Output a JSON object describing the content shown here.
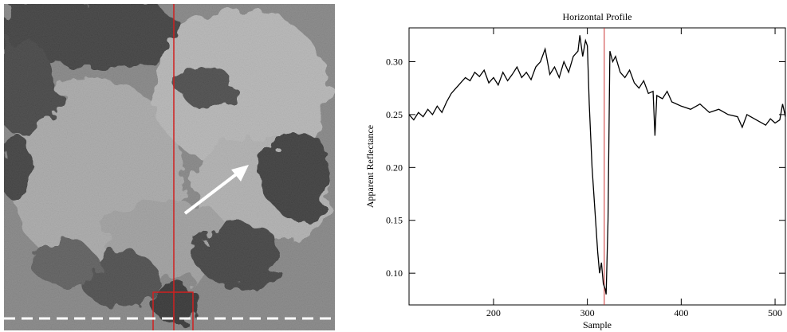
{
  "chart_data": {
    "type": "line",
    "title": "Horizontal Profile",
    "x_label": "Sample",
    "y_label": "Apparent Reflectance",
    "x": [
      110,
      115,
      120,
      125,
      130,
      135,
      140,
      145,
      150,
      155,
      160,
      165,
      170,
      175,
      180,
      185,
      190,
      195,
      200,
      205,
      210,
      215,
      220,
      225,
      230,
      235,
      240,
      245,
      250,
      255,
      260,
      265,
      270,
      275,
      280,
      285,
      290,
      292,
      295,
      298,
      300,
      302,
      305,
      308,
      311,
      313,
      315,
      317,
      319,
      320,
      322,
      324,
      327,
      330,
      335,
      340,
      345,
      350,
      355,
      360,
      365,
      370,
      372,
      374,
      380,
      385,
      390,
      395,
      400,
      410,
      420,
      430,
      440,
      450,
      460,
      465,
      470,
      480,
      490,
      495,
      500,
      505,
      508,
      511
    ],
    "values": [
      0.25,
      0.245,
      0.252,
      0.248,
      0.255,
      0.25,
      0.258,
      0.252,
      0.262,
      0.27,
      0.275,
      0.28,
      0.285,
      0.282,
      0.29,
      0.286,
      0.292,
      0.28,
      0.285,
      0.278,
      0.29,
      0.282,
      0.288,
      0.295,
      0.285,
      0.29,
      0.283,
      0.295,
      0.3,
      0.312,
      0.288,
      0.295,
      0.285,
      0.3,
      0.29,
      0.305,
      0.31,
      0.325,
      0.305,
      0.32,
      0.315,
      0.26,
      0.2,
      0.16,
      0.12,
      0.1,
      0.11,
      0.09,
      0.085,
      0.08,
      0.15,
      0.31,
      0.3,
      0.305,
      0.29,
      0.285,
      0.292,
      0.28,
      0.275,
      0.282,
      0.27,
      0.272,
      0.23,
      0.268,
      0.265,
      0.272,
      0.262,
      0.26,
      0.258,
      0.255,
      0.26,
      0.252,
      0.255,
      0.25,
      0.248,
      0.238,
      0.25,
      0.245,
      0.24,
      0.246,
      0.242,
      0.245,
      0.26,
      0.248
    ],
    "color": "#000000",
    "marker": {
      "x": 318,
      "color": "#cc3333"
    },
    "xlim": [
      110,
      511
    ],
    "ylim": [
      0.07,
      0.332
    ],
    "xticks": [
      200,
      300,
      400,
      500
    ],
    "yticks": [
      {
        "value": 0.1,
        "label": "0.10"
      },
      {
        "value": 0.15,
        "label": "0.15"
      },
      {
        "value": 0.2,
        "label": "0.20"
      },
      {
        "value": 0.25,
        "label": "0.25"
      },
      {
        "value": 0.3,
        "label": "0.30"
      }
    ],
    "grid": false
  }
}
